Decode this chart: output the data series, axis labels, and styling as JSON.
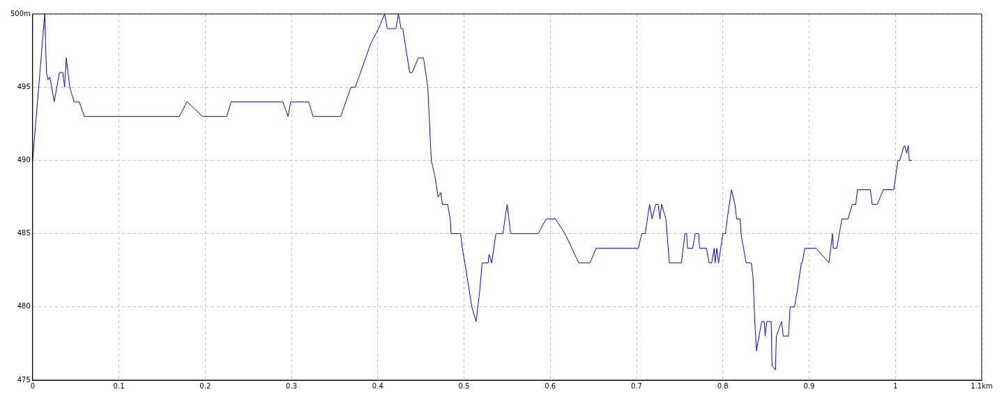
{
  "chart_data": {
    "type": "line",
    "color": "#0000ff",
    "marker": "none",
    "line_style": "solid",
    "grid": true,
    "legend": false,
    "xlim": [
      0,
      1.1
    ],
    "ylim": [
      475,
      500
    ],
    "xticks": [
      0,
      0.1,
      0.2,
      0.3,
      0.4,
      0.5,
      0.6,
      0.7,
      0.8,
      0.9,
      1,
      {
        "value": 1.1,
        "label": "1.1km"
      }
    ],
    "yticks": [
      475,
      480,
      485,
      490,
      495,
      {
        "value": 500,
        "label": "500m"
      }
    ],
    "x": [
      0,
      0.014,
      0.016,
      0.018,
      0.02,
      0.025,
      0.031,
      0.035,
      0.037,
      0.039,
      0.043,
      0.048,
      0.054,
      0.06,
      0.17,
      0.179,
      0.197,
      0.225,
      0.23,
      0.29,
      0.296,
      0.299,
      0.32,
      0.325,
      0.357,
      0.369,
      0.374,
      0.392,
      0.401,
      0.408,
      0.411,
      0.421,
      0.424,
      0.427,
      0.429,
      0.437,
      0.44,
      0.447,
      0.453,
      0.458,
      0.462,
      0.466,
      0.47,
      0.473,
      0.475,
      0.481,
      0.484,
      0.485,
      0.496,
      0.498,
      0.501,
      0.509,
      0.514,
      0.518,
      0.521,
      0.528,
      0.529,
      0.532,
      0.537,
      0.545,
      0.55,
      0.554,
      0.586,
      0.595,
      0.606,
      0.617,
      0.633,
      0.646,
      0.653,
      0.702,
      0.706,
      0.71,
      0.715,
      0.718,
      0.722,
      0.725,
      0.727,
      0.729,
      0.734,
      0.738,
      0.752,
      0.756,
      0.758,
      0.759,
      0.765,
      0.768,
      0.772,
      0.773,
      0.781,
      0.784,
      0.787,
      0.79,
      0.791,
      0.793,
      0.795,
      0.8,
      0.803,
      0.805,
      0.81,
      0.814,
      0.816,
      0.82,
      0.821,
      0.827,
      0.833,
      0.835,
      0.837,
      0.839,
      0.845,
      0.848,
      0.849,
      0.851,
      0.856,
      0.857,
      0.861,
      0.862,
      0.868,
      0.87,
      0.876,
      0.878,
      0.883,
      0.886,
      0.891,
      0.892,
      0.895,
      0.908,
      0.923,
      0.925,
      0.927,
      0.928,
      0.932,
      0.935,
      0.938,
      0.945,
      0.95,
      0.954,
      0.956,
      0.971,
      0.973,
      0.979,
      0.986,
      0.998,
      1.003,
      1.005,
      1.01,
      1.011,
      1.013,
      1.015,
      1.016,
      1.019
    ],
    "values": [
      490,
      500,
      496,
      495.5,
      495.7,
      494,
      496,
      496,
      495,
      497,
      495,
      494,
      494,
      493,
      493,
      494,
      493,
      493,
      494,
      494,
      493,
      494,
      494,
      493,
      493,
      495,
      495,
      498,
      499,
      500,
      499,
      499,
      500,
      499,
      499,
      496,
      496,
      497,
      497,
      495,
      490,
      489,
      487.5,
      487.8,
      487,
      487,
      486,
      485,
      485,
      484,
      483,
      480,
      479,
      481,
      483,
      483,
      483.6,
      483,
      485,
      485,
      487,
      485,
      485,
      486,
      486,
      485,
      483,
      483,
      484,
      484,
      485,
      485,
      487,
      486,
      487,
      487,
      486,
      487,
      486,
      483,
      483,
      485,
      485,
      484,
      484,
      485,
      485,
      484,
      484,
      483,
      483,
      484,
      483,
      484,
      483,
      485,
      485,
      486,
      488,
      487,
      486,
      486,
      485,
      483,
      483,
      482,
      479,
      477,
      479,
      479,
      478,
      479,
      479,
      476,
      475.7,
      478,
      479,
      478,
      478,
      480,
      480,
      481,
      483,
      483,
      484,
      484,
      483,
      484,
      485,
      484,
      484,
      485,
      486,
      486,
      487,
      487,
      488,
      488,
      487,
      487,
      488,
      488,
      490,
      490,
      491,
      491,
      490.5,
      491,
      490,
      490
    ]
  }
}
